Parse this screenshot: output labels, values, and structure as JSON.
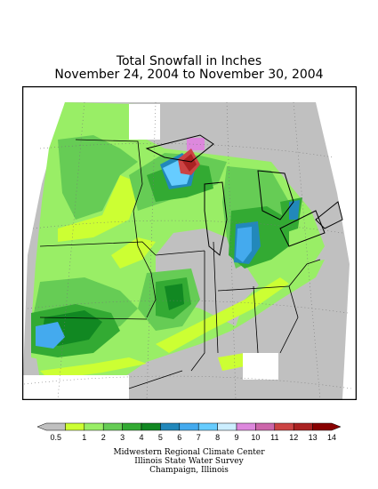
{
  "title": "Total Snowfall in Inches",
  "subtitle": "November 24, 2004 to November 30, 2004",
  "legend": {
    "ticks": [
      "0.5",
      "1",
      "2",
      "3",
      "4",
      "5",
      "6",
      "7",
      "8",
      "9",
      "10",
      "11",
      "12",
      "13",
      "14"
    ],
    "colors": [
      "#c0c0c0",
      "#ccff33",
      "#99ee66",
      "#66cc55",
      "#33aa33",
      "#118822",
      "#2288bb",
      "#44aaee",
      "#66ccff",
      "#cceeff",
      "#dd88dd",
      "#cc66aa",
      "#cc4444",
      "#aa2222",
      "#880000"
    ]
  },
  "credits": {
    "line1": "Midwestern Regional Climate Center",
    "line2": "Illinois State Water Survey",
    "line3": "Champaign, Illinois"
  }
}
